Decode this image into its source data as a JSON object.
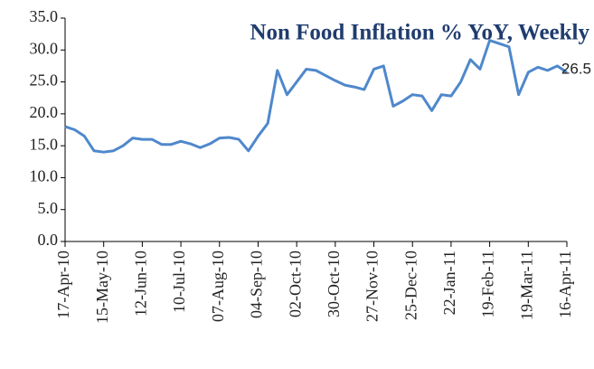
{
  "chart_data": {
    "type": "line",
    "title": "Non Food Inflation % YoY, Weekly",
    "categories": [
      "17-Apr-10",
      null,
      null,
      null,
      "15-May-10",
      null,
      null,
      null,
      "12-Jun-10",
      null,
      null,
      null,
      "10-Jul-10",
      null,
      null,
      null,
      "07-Aug-10",
      null,
      null,
      null,
      "04-Sep-10",
      null,
      null,
      null,
      "02-Oct-10",
      null,
      null,
      null,
      "30-Oct-10",
      null,
      null,
      null,
      "27-Nov-10",
      null,
      null,
      null,
      "25-Dec-10",
      null,
      null,
      null,
      "22-Jan-11",
      null,
      null,
      null,
      "19-Feb-11",
      null,
      null,
      null,
      "19-Mar-11",
      null,
      null,
      null,
      "16-Apr-11"
    ],
    "values": [
      18.0,
      17.5,
      16.5,
      14.2,
      14.0,
      14.2,
      15.0,
      16.2,
      16.0,
      16.0,
      15.2,
      15.2,
      15.7,
      15.3,
      14.7,
      15.3,
      16.2,
      16.3,
      16.0,
      14.2,
      16.5,
      18.5,
      26.8,
      23.0,
      25.0,
      27.0,
      26.8,
      26.0,
      25.2,
      24.5,
      24.2,
      23.8,
      27.0,
      27.5,
      21.2,
      22.0,
      23.0,
      22.8,
      20.5,
      23.0,
      22.8,
      25.0,
      28.5,
      27.0,
      31.5,
      31.0,
      30.5,
      23.0,
      26.5,
      27.3,
      26.8,
      27.5,
      26.5
    ],
    "color": "#4f88cc",
    "ylim": [
      0,
      35
    ],
    "yticks": [
      {
        "value": 0,
        "label": "0.0"
      },
      {
        "value": 5,
        "label": "5.0"
      },
      {
        "value": 10,
        "label": "10.0"
      },
      {
        "value": 15,
        "label": "15.0"
      },
      {
        "value": 20,
        "label": "20.0"
      },
      {
        "value": 25,
        "label": "25.0"
      },
      {
        "value": 30,
        "label": "30.0"
      },
      {
        "value": 35,
        "label": "35.0"
      }
    ],
    "grid": false
  }
}
